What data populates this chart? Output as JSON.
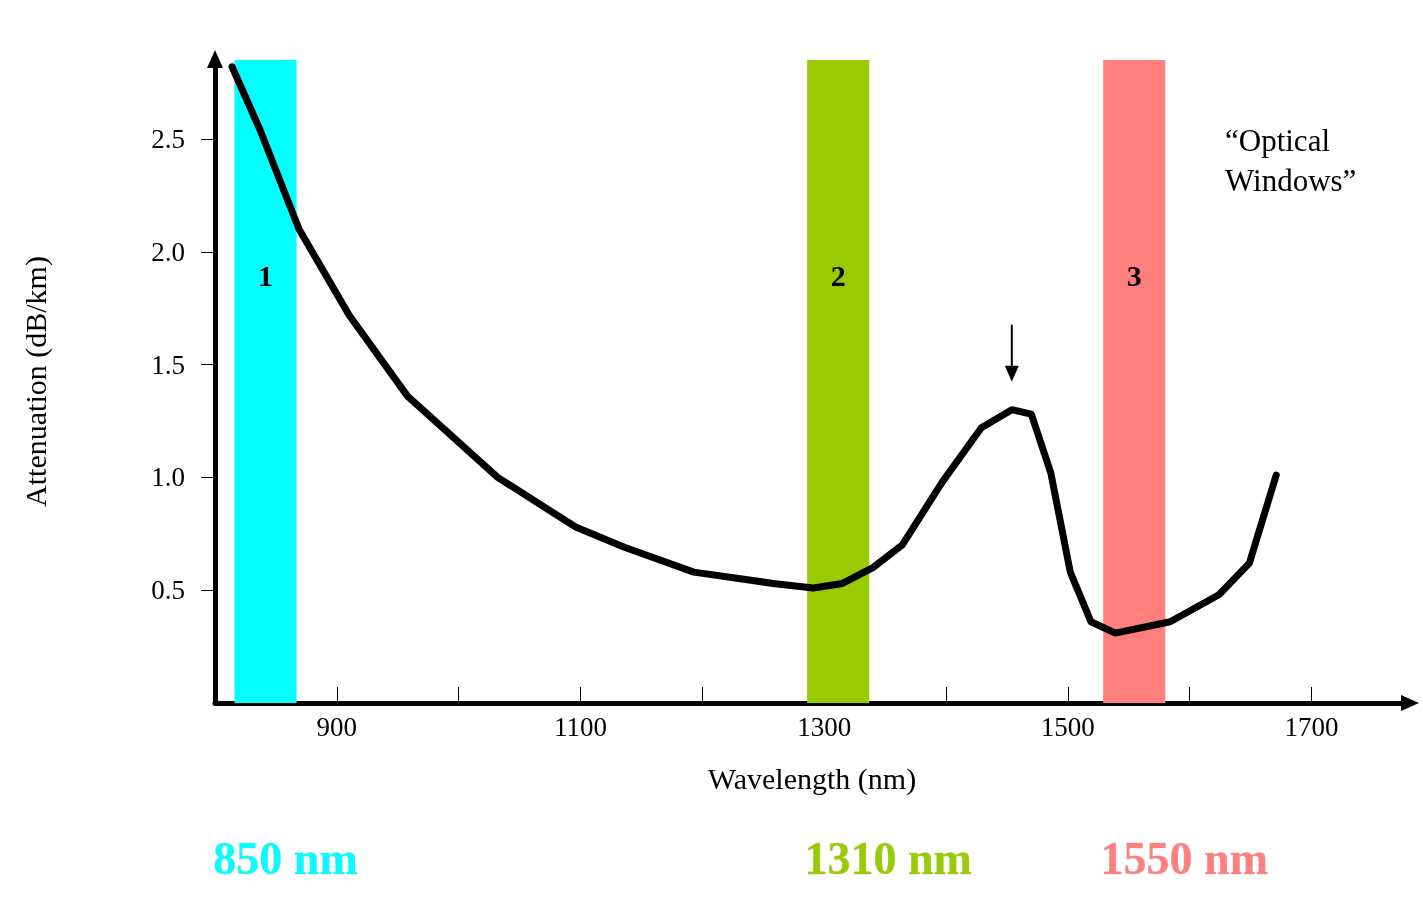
{
  "chart_data": {
    "type": "line",
    "xlabel": "Wavelength (nm)",
    "ylabel": "Attenuation (dB/km)",
    "x": [
      814,
      837,
      869,
      910,
      958,
      1032,
      1096,
      1136,
      1193,
      1258,
      1291,
      1315,
      1340,
      1364,
      1397,
      1429,
      1454,
      1470,
      1486,
      1502,
      1519,
      1539,
      1584,
      1624,
      1649,
      1671
    ],
    "series": [
      {
        "color": "#000000",
        "values": [
          2.82,
          2.54,
          2.1,
          1.72,
          1.36,
          1.0,
          0.78,
          0.69,
          0.58,
          0.53,
          0.51,
          0.53,
          0.6,
          0.7,
          0.98,
          1.22,
          1.3,
          1.28,
          1.02,
          0.58,
          0.36,
          0.31,
          0.36,
          0.48,
          0.62,
          1.01
        ]
      }
    ],
    "xlim": [
      800,
      1780
    ],
    "xticks": [
      900,
      {
        "value": 1000,
        "label": null
      },
      1100,
      {
        "value": 1200,
        "label": null
      },
      1300,
      {
        "value": 1400,
        "label": null
      },
      1500,
      {
        "value": 1600,
        "label": null
      },
      1700
    ],
    "ylim": [
      0,
      2.85
    ],
    "yticks": [
      {
        "value": 0.5,
        "label": "0.5"
      },
      {
        "value": 1,
        "label": "1.0"
      },
      {
        "value": 1.5,
        "label": "1.5"
      },
      {
        "value": 2,
        "label": "2.0"
      },
      {
        "value": 2.5,
        "label": "2.5"
      }
    ],
    "bands": [
      {
        "axis": "x",
        "from": 816,
        "to": 867,
        "label": "1",
        "color": "#00ffff"
      },
      {
        "axis": "x",
        "from": 1286,
        "to": 1337,
        "label": "2",
        "color": "#99cc00"
      },
      {
        "axis": "x",
        "from": 1529,
        "to": 1580,
        "label": "3",
        "color": "#ff7f7f"
      }
    ],
    "annotations": [
      "“Optical Windows”",
      "850 nm",
      "1310 nm",
      "1550 nm"
    ],
    "grid": false,
    "marker": "none",
    "line_style": "solid"
  }
}
